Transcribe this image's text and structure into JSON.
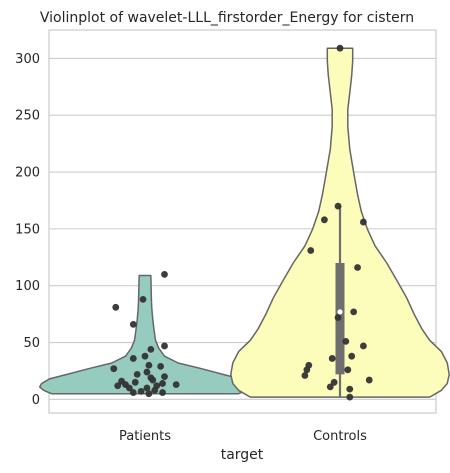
{
  "chart_data": {
    "type": "violin",
    "title": "Violinplot of wavelet-LLL_firstorder_Energy for cistern",
    "xlabel": "target",
    "ylabel": "",
    "categories": [
      "Patients",
      "Controls"
    ],
    "ylim": [
      -12,
      325
    ],
    "yticks": [
      0,
      50,
      100,
      150,
      200,
      250,
      300
    ],
    "grid": true,
    "series": [
      {
        "category": "Patients",
        "color": "#96ccc0",
        "edge_color": "#666666",
        "density_profile": [
          {
            "y": 5,
            "half_width": 0.48
          },
          {
            "y": 8,
            "half_width": 0.52
          },
          {
            "y": 11,
            "half_width": 0.54
          },
          {
            "y": 14,
            "half_width": 0.53
          },
          {
            "y": 18,
            "half_width": 0.49
          },
          {
            "y": 22,
            "half_width": 0.4
          },
          {
            "y": 27,
            "half_width": 0.29
          },
          {
            "y": 32,
            "half_width": 0.17
          },
          {
            "y": 38,
            "half_width": 0.1
          },
          {
            "y": 45,
            "half_width": 0.07
          },
          {
            "y": 52,
            "half_width": 0.054
          },
          {
            "y": 60,
            "half_width": 0.047
          },
          {
            "y": 70,
            "half_width": 0.04
          },
          {
            "y": 80,
            "half_width": 0.035
          },
          {
            "y": 88,
            "half_width": 0.033
          },
          {
            "y": 96,
            "half_width": 0.032
          },
          {
            "y": 104,
            "half_width": 0.031
          },
          {
            "y": 109,
            "half_width": 0.03
          }
        ],
        "points": [
          {
            "x": 0.1,
            "y": 110
          },
          {
            "x": -0.01,
            "y": 88
          },
          {
            "x": -0.15,
            "y": 81
          },
          {
            "x": -0.06,
            "y": 66
          },
          {
            "x": 0.1,
            "y": 47
          },
          {
            "x": 0.03,
            "y": 44
          },
          {
            "x": 0.0,
            "y": 38
          },
          {
            "x": -0.06,
            "y": 36
          },
          {
            "x": 0.08,
            "y": 29
          },
          {
            "x": 0.02,
            "y": 30
          },
          {
            "x": -0.16,
            "y": 27
          },
          {
            "x": 0.01,
            "y": 24
          },
          {
            "x": -0.04,
            "y": 22
          },
          {
            "x": 0.1,
            "y": 20
          },
          {
            "x": 0.03,
            "y": 19
          },
          {
            "x": 0.04,
            "y": 17
          },
          {
            "x": -0.12,
            "y": 16
          },
          {
            "x": -0.05,
            "y": 15
          },
          {
            "x": 0.09,
            "y": 14
          },
          {
            "x": -0.1,
            "y": 13
          },
          {
            "x": 0.16,
            "y": 13
          },
          {
            "x": 0.06,
            "y": 12
          },
          {
            "x": -0.14,
            "y": 12
          },
          {
            "x": 0.01,
            "y": 10
          },
          {
            "x": -0.08,
            "y": 10
          },
          {
            "x": 0.05,
            "y": 8
          },
          {
            "x": -0.02,
            "y": 7
          },
          {
            "x": 0.09,
            "y": 6
          },
          {
            "x": -0.06,
            "y": 6
          },
          {
            "x": 0.02,
            "y": 5
          }
        ]
      },
      {
        "category": "Controls",
        "color": "#fcfcbb",
        "edge_color": "#666666",
        "box": {
          "q1": 22,
          "median": 77,
          "q3": 120,
          "whisker_low": 2,
          "whisker_high": 170
        },
        "density_profile": [
          {
            "y": 2,
            "half_width": 0.46
          },
          {
            "y": 8,
            "half_width": 0.52
          },
          {
            "y": 14,
            "half_width": 0.55
          },
          {
            "y": 22,
            "half_width": 0.56
          },
          {
            "y": 32,
            "half_width": 0.55
          },
          {
            "y": 42,
            "half_width": 0.52
          },
          {
            "y": 52,
            "half_width": 0.46
          },
          {
            "y": 62,
            "half_width": 0.42
          },
          {
            "y": 75,
            "half_width": 0.38
          },
          {
            "y": 90,
            "half_width": 0.34
          },
          {
            "y": 105,
            "half_width": 0.29
          },
          {
            "y": 120,
            "half_width": 0.24
          },
          {
            "y": 135,
            "half_width": 0.18
          },
          {
            "y": 150,
            "half_width": 0.14
          },
          {
            "y": 165,
            "half_width": 0.11
          },
          {
            "y": 180,
            "half_width": 0.09
          },
          {
            "y": 200,
            "half_width": 0.07
          },
          {
            "y": 220,
            "half_width": 0.05
          },
          {
            "y": 240,
            "half_width": 0.04
          },
          {
            "y": 255,
            "half_width": 0.04
          },
          {
            "y": 270,
            "half_width": 0.05
          },
          {
            "y": 285,
            "half_width": 0.06
          },
          {
            "y": 298,
            "half_width": 0.065
          },
          {
            "y": 309,
            "half_width": 0.065
          }
        ],
        "points": [
          {
            "x": 0.0,
            "y": 309
          },
          {
            "x": -0.01,
            "y": 170
          },
          {
            "x": -0.08,
            "y": 158
          },
          {
            "x": 0.12,
            "y": 156
          },
          {
            "x": -0.15,
            "y": 131
          },
          {
            "x": 0.09,
            "y": 116
          },
          {
            "x": 0.07,
            "y": 77
          },
          {
            "x": -0.01,
            "y": 72
          },
          {
            "x": 0.03,
            "y": 51
          },
          {
            "x": 0.12,
            "y": 47
          },
          {
            "x": 0.06,
            "y": 38
          },
          {
            "x": -0.04,
            "y": 36
          },
          {
            "x": -0.16,
            "y": 30
          },
          {
            "x": -0.17,
            "y": 26
          },
          {
            "x": 0.04,
            "y": 26
          },
          {
            "x": -0.18,
            "y": 21
          },
          {
            "x": 0.15,
            "y": 17
          },
          {
            "x": -0.03,
            "y": 15
          },
          {
            "x": -0.05,
            "y": 11
          },
          {
            "x": 0.05,
            "y": 9
          },
          {
            "x": 0.05,
            "y": 2
          }
        ]
      }
    ]
  }
}
